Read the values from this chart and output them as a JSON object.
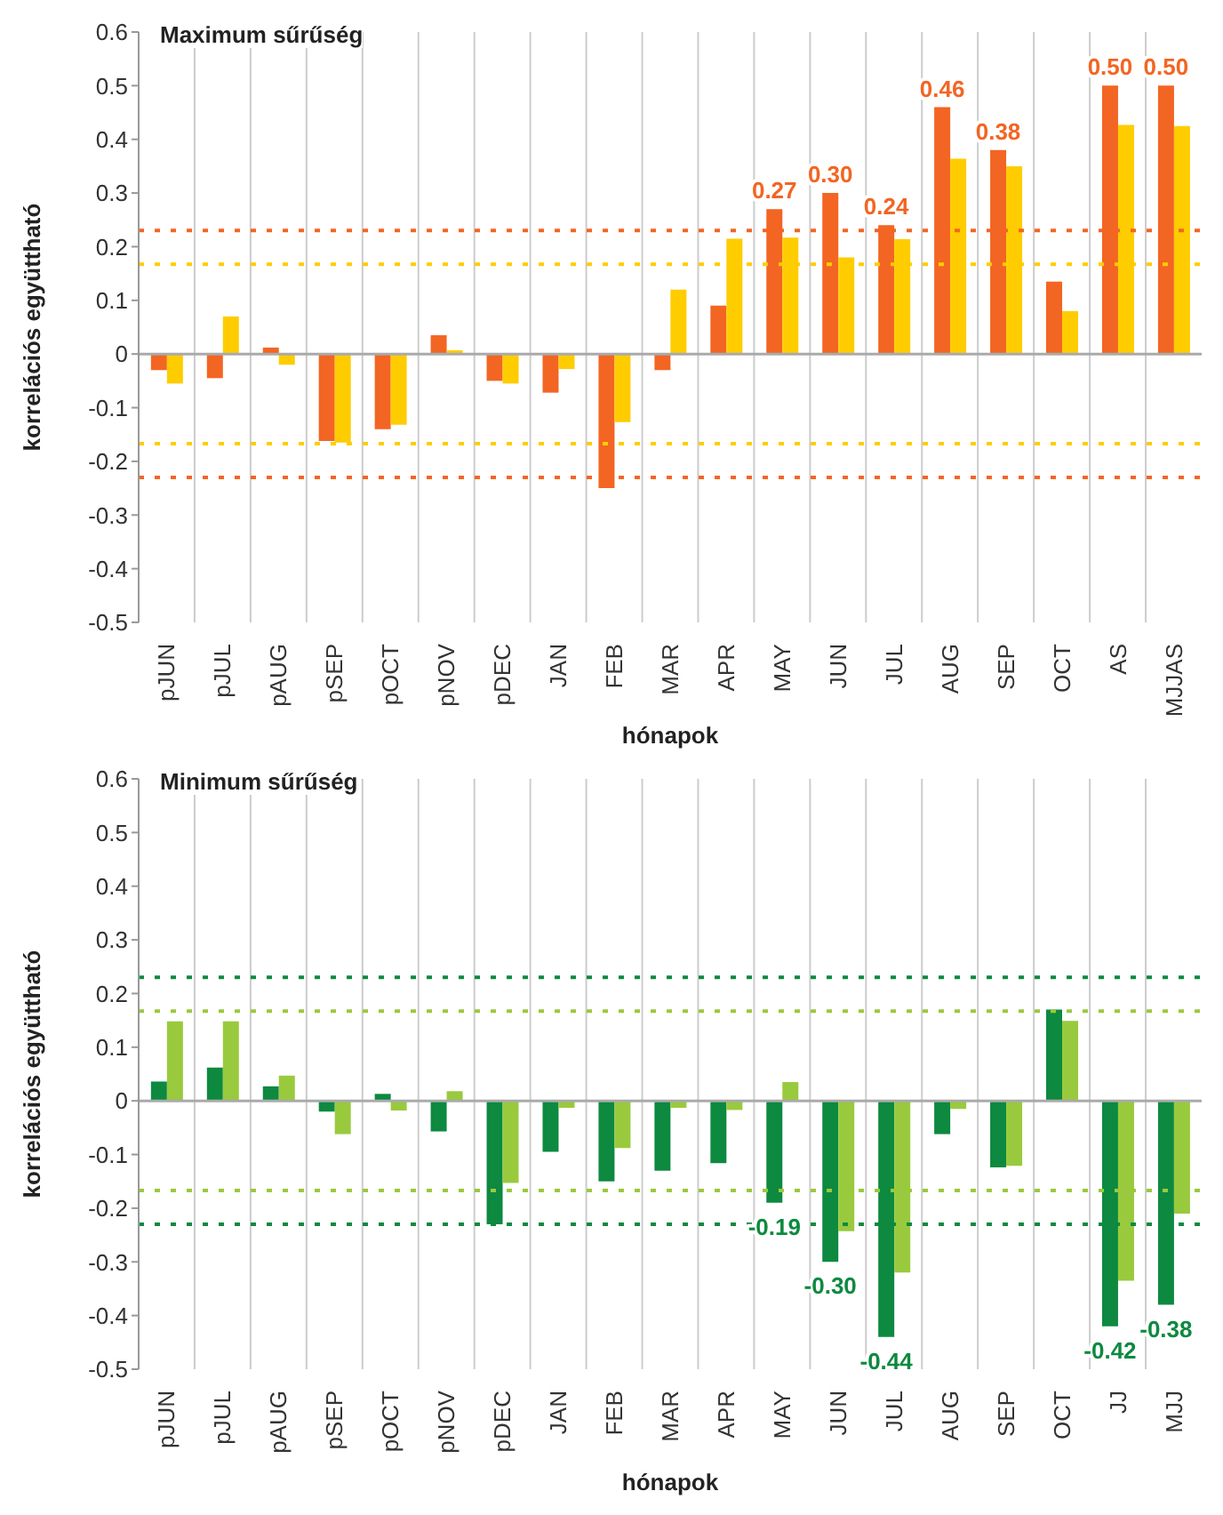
{
  "chart_data": [
    {
      "type": "bar",
      "title": "Maximum sűrűség",
      "xlabel": "hónapok",
      "ylabel": "korrelációs együttható",
      "categories": [
        "pJUN",
        "pJUL",
        "pAUG",
        "pSEP",
        "pOCT",
        "pNOV",
        "pDEC",
        "JAN",
        "FEB",
        "MAR",
        "APR",
        "MAY",
        "JUN",
        "JUL",
        "AUG",
        "SEP",
        "OCT",
        "AS",
        "MJJAS"
      ],
      "series": [
        {
          "color": "#f26522",
          "values": [
            -0.03,
            -0.045,
            0.012,
            -0.162,
            -0.14,
            0.035,
            -0.05,
            -0.072,
            -0.25,
            -0.03,
            0.09,
            0.27,
            0.3,
            0.24,
            0.46,
            0.38,
            0.135,
            0.5,
            0.5
          ],
          "value_labels": [
            null,
            null,
            null,
            null,
            null,
            null,
            null,
            null,
            null,
            null,
            null,
            "0.27",
            "0.30",
            "0.24",
            "0.46",
            "0.38",
            null,
            "0.50",
            "0.50"
          ]
        },
        {
          "color": "#ffcc00",
          "values": [
            -0.055,
            0.07,
            -0.02,
            -0.165,
            -0.132,
            0.007,
            -0.055,
            -0.028,
            -0.127,
            0.12,
            0.215,
            0.217,
            0.18,
            0.214,
            0.364,
            0.35,
            0.08,
            0.427,
            0.425
          ]
        }
      ],
      "ylim": [
        -0.5,
        0.6
      ],
      "yticks": [
        -0.5,
        -0.4,
        -0.3,
        -0.2,
        -0.1,
        0,
        0.1,
        0.2,
        0.3,
        0.4,
        0.5,
        0.6
      ],
      "grid": "x",
      "ref_lines": [
        {
          "axis": "y",
          "value": 0.23,
          "color": "#f26522",
          "line_style": "dotted"
        },
        {
          "axis": "y",
          "value": 0.167,
          "color": "#ffcc00",
          "line_style": "dotted"
        },
        {
          "axis": "y",
          "value": -0.167,
          "color": "#ffcc00",
          "line_style": "dotted"
        },
        {
          "axis": "y",
          "value": -0.23,
          "color": "#f26522",
          "line_style": "dotted"
        }
      ]
    },
    {
      "type": "bar",
      "title": "Minimum sűrűség",
      "xlabel": "hónapok",
      "ylabel": "korrelációs együttható",
      "categories": [
        "pJUN",
        "pJUL",
        "pAUG",
        "pSEP",
        "pOCT",
        "pNOV",
        "pDEC",
        "JAN",
        "FEB",
        "MAR",
        "APR",
        "MAY",
        "JUN",
        "JUL",
        "AUG",
        "SEP",
        "OCT",
        "JJ",
        "MJJ"
      ],
      "series": [
        {
          "color": "#0e8a40",
          "values": [
            0.036,
            0.062,
            0.027,
            -0.02,
            0.013,
            -0.057,
            -0.23,
            -0.095,
            -0.15,
            -0.13,
            -0.116,
            -0.19,
            -0.3,
            -0.44,
            -0.062,
            -0.124,
            0.17,
            -0.42,
            -0.38
          ],
          "value_labels": [
            null,
            null,
            null,
            null,
            null,
            null,
            null,
            null,
            null,
            null,
            null,
            "-0.19",
            "-0.30",
            "-0.44",
            null,
            null,
            null,
            "-0.42",
            "-0.38"
          ]
        },
        {
          "color": "#99c93c",
          "values": [
            0.148,
            0.148,
            0.047,
            -0.062,
            -0.018,
            0.018,
            -0.153,
            -0.013,
            -0.088,
            -0.013,
            -0.017,
            0.035,
            -0.243,
            -0.32,
            -0.015,
            -0.121,
            0.149,
            -0.335,
            -0.21
          ]
        }
      ],
      "ylim": [
        -0.5,
        0.6
      ],
      "yticks": [
        -0.5,
        -0.4,
        -0.3,
        -0.2,
        -0.1,
        0,
        0.1,
        0.2,
        0.3,
        0.4,
        0.5,
        0.6
      ],
      "grid": "x",
      "ref_lines": [
        {
          "axis": "y",
          "value": 0.23,
          "color": "#0e8a40",
          "line_style": "dotted"
        },
        {
          "axis": "y",
          "value": 0.167,
          "color": "#99c93c",
          "line_style": "dotted"
        },
        {
          "axis": "y",
          "value": -0.167,
          "color": "#99c93c",
          "line_style": "dotted"
        },
        {
          "axis": "y",
          "value": -0.23,
          "color": "#0e8a40",
          "line_style": "dotted"
        }
      ]
    }
  ]
}
